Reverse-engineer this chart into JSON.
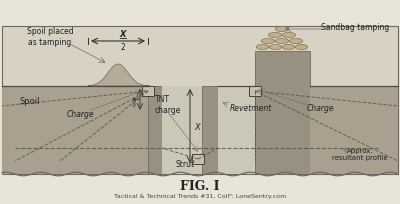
{
  "bg_color": "#ddd8cc",
  "fig_bg": "#e8e4d8",
  "diagram_bg": "#d8d2c4",
  "ground_color": "#aaa090",
  "ditch_bg": "#ccc8b8",
  "wall_color": "#989080",
  "title": "FIG. I",
  "caption": "Tactical & Technical Trends #31, Collⁿ: LoneSentry.com",
  "labels": {
    "spoil_tamping": "Spoil placed\nas tamping",
    "spoil": "Spoil",
    "charge_left": "Charge",
    "tnt_charge": "TNT\ncharge",
    "x_label": "X",
    "strut": "Strut",
    "revetment": "Revetment",
    "charge_right": "Charge",
    "sandbag": "Sandbag tamping",
    "approx": "Approx.\nresultant profile"
  },
  "border_color": "#706860",
  "text_color": "#222222",
  "dashed_color": "#555548",
  "arrow_color": "#333328"
}
